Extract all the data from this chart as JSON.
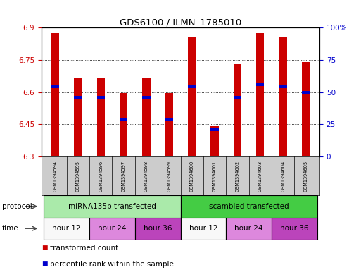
{
  "title": "GDS6100 / ILMN_1785010",
  "samples": [
    "GSM1394594",
    "GSM1394595",
    "GSM1394596",
    "GSM1394597",
    "GSM1394598",
    "GSM1394599",
    "GSM1394600",
    "GSM1394601",
    "GSM1394602",
    "GSM1394603",
    "GSM1394604",
    "GSM1394605"
  ],
  "bar_bottom": 6.3,
  "transformed_counts": [
    6.875,
    6.665,
    6.665,
    6.595,
    6.663,
    6.595,
    6.855,
    6.44,
    6.73,
    6.875,
    6.855,
    6.74
  ],
  "percentile_values": [
    6.625,
    6.575,
    6.575,
    6.47,
    6.575,
    6.47,
    6.625,
    6.425,
    6.575,
    6.635,
    6.625,
    6.6
  ],
  "ylim_left": [
    6.3,
    6.9
  ],
  "yticks_left": [
    6.3,
    6.45,
    6.6,
    6.75,
    6.9
  ],
  "ytick_labels_right": [
    "0",
    "25",
    "50",
    "75",
    "100%"
  ],
  "bar_color": "#cc0000",
  "percentile_color": "#0000cc",
  "protocol_groups": [
    {
      "label": "miRNA135b transfected",
      "start": 0,
      "end": 6,
      "color": "#aaeaaa"
    },
    {
      "label": "scambled transfected",
      "start": 6,
      "end": 12,
      "color": "#44cc44"
    }
  ],
  "time_groups": [
    {
      "label": "hour 12",
      "start": 0,
      "end": 2,
      "color": "#f8f8f8"
    },
    {
      "label": "hour 24",
      "start": 2,
      "end": 4,
      "color": "#dd88dd"
    },
    {
      "label": "hour 36",
      "start": 4,
      "end": 6,
      "color": "#bb44bb"
    },
    {
      "label": "hour 12",
      "start": 6,
      "end": 8,
      "color": "#f8f8f8"
    },
    {
      "label": "hour 24",
      "start": 8,
      "end": 10,
      "color": "#dd88dd"
    },
    {
      "label": "hour 36",
      "start": 10,
      "end": 12,
      "color": "#bb44bb"
    }
  ],
  "protocol_label": "protocol",
  "time_label": "time",
  "legend_items": [
    {
      "label": "transformed count",
      "color": "#cc0000"
    },
    {
      "label": "percentile rank within the sample",
      "color": "#0000cc"
    }
  ],
  "sample_bg": "#cccccc",
  "bar_width": 0.35
}
